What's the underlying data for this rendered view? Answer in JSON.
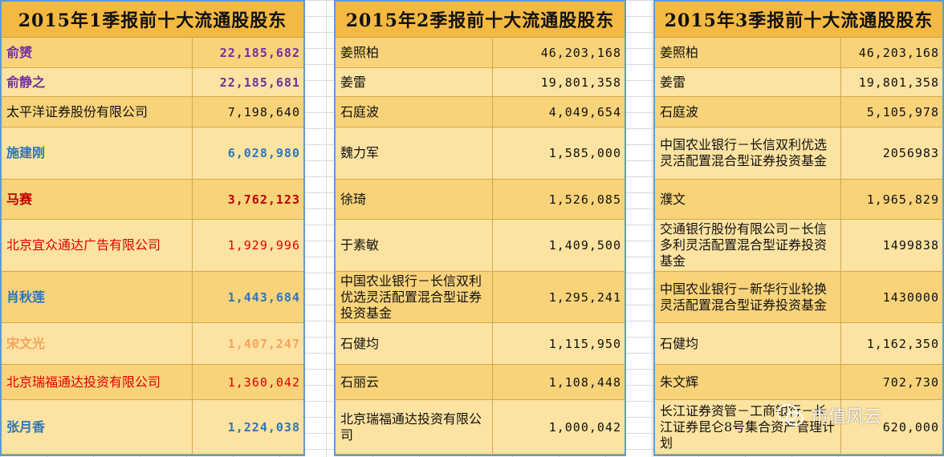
{
  "tables": [
    {
      "title": "2015年1季报前十大流通股股东",
      "rows": [
        {
          "name": "俞赟",
          "value": "22,185,682",
          "color": "#7030a0",
          "bold": true
        },
        {
          "name": "俞静之",
          "value": "22,185,681",
          "color": "#7030a0",
          "bold": true
        },
        {
          "name": "太平洋证券股份有限公司",
          "value": "7,198,640",
          "color": "#111111",
          "bold": false
        },
        {
          "name": "施建刚",
          "value": "6,028,980",
          "color": "#2e75b6",
          "bold": true
        },
        {
          "name": "马赛",
          "value": "3,762,123",
          "color": "#c00000",
          "bold": true
        },
        {
          "name": "北京宜众通达广告有限公司",
          "value": "1,929,996",
          "color": "#e00000",
          "bold": false
        },
        {
          "name": "肖秋莲",
          "value": "1,443,684",
          "color": "#2e75b6",
          "bold": true
        },
        {
          "name": "宋文光",
          "value": "1,407,247",
          "color": "#f4a460",
          "bold": true
        },
        {
          "name": "北京瑞福通达投资有限公司",
          "value": "1,360,042",
          "color": "#e00000",
          "bold": false
        },
        {
          "name": "张月香",
          "value": "1,224,038",
          "color": "#2e75b6",
          "bold": true
        }
      ]
    },
    {
      "title": "2015年2季报前十大流通股股东",
      "rows": [
        {
          "name": "姜照柏",
          "value": "46,203,168"
        },
        {
          "name": "姜雷",
          "value": "19,801,358"
        },
        {
          "name": "石庭波",
          "value": "4,049,654"
        },
        {
          "name": "魏力军",
          "value": "1,585,000"
        },
        {
          "name": "徐琦",
          "value": "1,526,085"
        },
        {
          "name": "于素敏",
          "value": "1,409,500"
        },
        {
          "name": "中国农业银行－长信双利优选灵活配置混合型证券投资基金",
          "value": "1,295,241"
        },
        {
          "name": "石健均",
          "value": "1,115,950"
        },
        {
          "name": "石丽云",
          "value": "1,108,448"
        },
        {
          "name": "北京瑞福通达投资有限公司",
          "value": "1,000,042"
        }
      ]
    },
    {
      "title": "2015年3季报前十大流通股股东",
      "rows": [
        {
          "name": "姜照柏",
          "value": "46,203,168"
        },
        {
          "name": "姜雷",
          "value": "19,801,358"
        },
        {
          "name": "石庭波",
          "value": "5,105,978"
        },
        {
          "name": "中国农业银行－长信双利优选灵活配置混合型证券投资基金",
          "value": "2056983"
        },
        {
          "name": "濮文",
          "value": "1,965,829"
        },
        {
          "name": "交通银行股份有限公司－长信多利灵活配置混合型证券投资基金",
          "value": "1499838"
        },
        {
          "name": "中国农业银行－新华行业轮换灵活配置混合型证券投资基金",
          "value": "1430000"
        },
        {
          "name": "石健均",
          "value": "1,162,350"
        },
        {
          "name": "朱文辉",
          "value": "702,730"
        },
        {
          "name": "长江证券资管－工商银行－长江证券昆仑8号集合资产管理计划",
          "value": "620,000"
        }
      ]
    }
  ],
  "watermark": {
    "text": "市值风云",
    "icon": "wechat-icon"
  }
}
